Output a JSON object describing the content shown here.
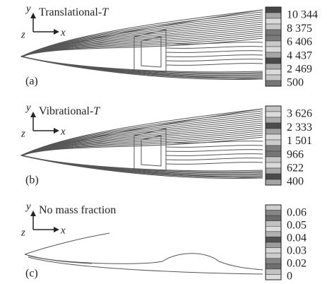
{
  "panels": [
    {
      "label": "(a)",
      "title": "Translational-",
      "title_var": "T",
      "axis": {
        "y": "y",
        "z": "z",
        "x": "x"
      },
      "colorbar": [
        "10 344",
        "8 375",
        "6 406",
        "4 437",
        "2 469",
        "500"
      ]
    },
    {
      "label": "(b)",
      "title": "Vibrational-",
      "title_var": "T",
      "axis": {
        "y": "y",
        "z": "z",
        "x": "x"
      },
      "colorbar": [
        "3 626",
        "2 333",
        "1 501",
        "966",
        "622",
        "400"
      ]
    },
    {
      "label": "(c)",
      "title": "No mass fraction",
      "axis": {
        "y": "y",
        "z": "z",
        "x": "x"
      },
      "colorbar": [
        "0.06",
        "0.05",
        "0.04",
        "0.03",
        "0.02",
        "0"
      ]
    }
  ]
}
